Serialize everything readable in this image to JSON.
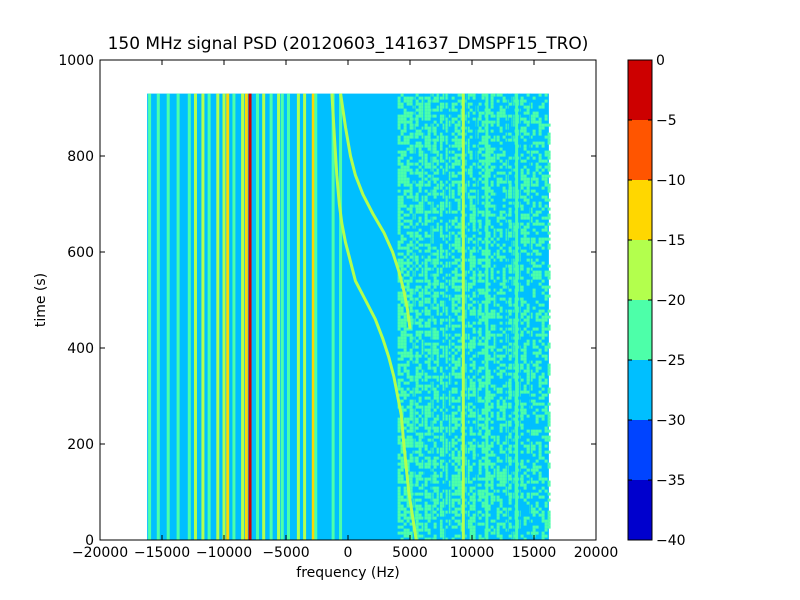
{
  "chart_data": {
    "type": "heatmap",
    "title": "150 MHz signal PSD (20120603_141637_DMSPF15_TRO)",
    "xlabel": "frequency (Hz)",
    "ylabel": "time (s)",
    "xlim": [
      -20000,
      20000
    ],
    "ylim": [
      0,
      1000
    ],
    "xticks": [
      -20000,
      -15000,
      -10000,
      -5000,
      0,
      5000,
      10000,
      15000,
      20000
    ],
    "xtick_labels": [
      "−20000",
      "−15000",
      "−10000",
      "−5000",
      "0",
      "5000",
      "10000",
      "15000",
      "20000"
    ],
    "yticks": [
      0,
      200,
      400,
      600,
      800,
      1000
    ],
    "ytick_labels": [
      "0",
      "200",
      "400",
      "600",
      "800",
      "1000"
    ],
    "data_extent": {
      "x": [
        -16200,
        16200
      ],
      "y": [
        0,
        930
      ]
    },
    "background_level": -27.5,
    "colorbar": {
      "range": [
        -40,
        0
      ],
      "ticks": [
        0,
        -5,
        -10,
        -15,
        -20,
        -25,
        -30,
        -35,
        -40
      ],
      "tick_labels": [
        "0",
        "−5",
        "−10",
        "−15",
        "−20",
        "−25",
        "−30",
        "−35",
        "−40"
      ],
      "bins": [
        {
          "low": -40,
          "high": -35,
          "color": "#0000cd"
        },
        {
          "low": -35,
          "high": -30,
          "color": "#0044ff"
        },
        {
          "low": -30,
          "high": -25,
          "color": "#00bfff"
        },
        {
          "low": -25,
          "high": -20,
          "color": "#4dffa9"
        },
        {
          "low": -20,
          "high": -15,
          "color": "#b3ff4d"
        },
        {
          "low": -15,
          "high": -10,
          "color": "#ffd700"
        },
        {
          "low": -10,
          "high": -5,
          "color": "#ff5500"
        },
        {
          "low": -5,
          "high": 0,
          "color": "#cd0000"
        }
      ]
    },
    "vertical_lines": [
      {
        "freq": -16000,
        "level": -22.5
      },
      {
        "freq": -15300,
        "level": -22.5
      },
      {
        "freq": -14500,
        "level": -22.5
      },
      {
        "freq": -13700,
        "level": -22.5
      },
      {
        "freq": -12800,
        "level": -22.5
      },
      {
        "freq": -12300,
        "level": -17.5
      },
      {
        "freq": -11700,
        "level": -17.5
      },
      {
        "freq": -11200,
        "level": -22.5
      },
      {
        "freq": -10500,
        "level": -17.5
      },
      {
        "freq": -10000,
        "level": -17.5
      },
      {
        "freq": -9700,
        "level": -12.5
      },
      {
        "freq": -9200,
        "level": -22.5
      },
      {
        "freq": -8500,
        "level": -17.5
      },
      {
        "freq": -8200,
        "level": -12.5
      },
      {
        "freq": -7900,
        "level": -2.5
      },
      {
        "freq": -7300,
        "level": -22.5
      },
      {
        "freq": -6800,
        "level": -17.5
      },
      {
        "freq": -6200,
        "level": -22.5
      },
      {
        "freq": -5600,
        "level": -17.5
      },
      {
        "freq": -5300,
        "level": -22.5
      },
      {
        "freq": -4800,
        "level": -22.5
      },
      {
        "freq": -4000,
        "level": -17.5
      },
      {
        "freq": -3500,
        "level": -17.5
      },
      {
        "freq": -2800,
        "level": -12.5
      },
      {
        "freq": -2600,
        "level": -22.5
      },
      {
        "freq": -1200,
        "level": -22.5
      },
      {
        "freq": -600,
        "level": -22.5
      },
      {
        "freq": 9300,
        "level": -17.5
      },
      {
        "freq": 11200,
        "level": -22.5
      },
      {
        "freq": 13600,
        "level": -22.5
      }
    ],
    "tracks": [
      {
        "level": -17.5,
        "points": [
          [
            0,
            5500
          ],
          [
            50,
            5200
          ],
          [
            100,
            4900
          ],
          [
            150,
            4700
          ],
          [
            200,
            4500
          ],
          [
            260,
            4300
          ],
          [
            300,
            4000
          ],
          [
            340,
            3700
          ],
          [
            380,
            3300
          ],
          [
            420,
            2800
          ],
          [
            460,
            2200
          ],
          [
            500,
            1400
          ],
          [
            540,
            600
          ],
          [
            580,
            200
          ],
          [
            620,
            -200
          ],
          [
            660,
            -500
          ],
          [
            700,
            -700
          ],
          [
            760,
            -900
          ],
          [
            840,
            -1100
          ],
          [
            930,
            -1300
          ]
        ]
      },
      {
        "level": -17.5,
        "points": [
          [
            440,
            5000
          ],
          [
            480,
            4800
          ],
          [
            520,
            4500
          ],
          [
            560,
            4100
          ],
          [
            600,
            3600
          ],
          [
            640,
            2900
          ],
          [
            680,
            2000
          ],
          [
            720,
            1200
          ],
          [
            760,
            600
          ],
          [
            800,
            200
          ],
          [
            860,
            -200
          ],
          [
            930,
            -600
          ]
        ]
      }
    ],
    "noisy_region": {
      "x": [
        4000,
        16200
      ],
      "level_low": -27.5,
      "level_high": -22.5
    }
  }
}
